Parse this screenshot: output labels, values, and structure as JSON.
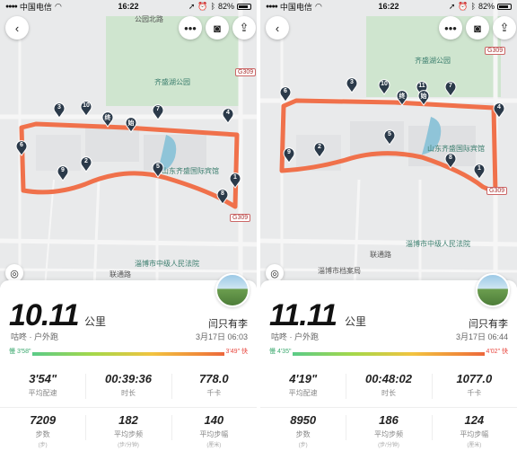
{
  "panels": [
    {
      "status": {
        "carrier": "中国电信",
        "time": "16:22",
        "battery": "82%"
      },
      "map": {
        "park": "齐盛湖公园",
        "hotel": "山东齐盛国际宾馆",
        "court": "淄博市中级人民法院",
        "road1": "联通路",
        "road2": "公园北路",
        "badge1": "G309",
        "badge2": "G309",
        "markers": [
          "1",
          "2",
          "3",
          "4",
          "5",
          "6",
          "7",
          "8",
          "9",
          "10"
        ],
        "start": "始",
        "end": "终"
      },
      "distance": "10.11",
      "unit": "公里",
      "source": "咕咚 · 户外跑",
      "user": "闫只有李",
      "date": "3月17日 06:03",
      "pace_slow": "慢 3'58\"",
      "pace_fast": "3'49\" 快",
      "stats": [
        {
          "value": "3'54\"",
          "label": "平均配速",
          "sub": ""
        },
        {
          "value": "00:39:36",
          "label": "时长",
          "sub": ""
        },
        {
          "value": "778.0",
          "label": "千卡",
          "sub": ""
        },
        {
          "value": "7209",
          "label": "步数",
          "sub": "(步)"
        },
        {
          "value": "182",
          "label": "平均步频",
          "sub": "(步/分钟)"
        },
        {
          "value": "140",
          "label": "平均步幅",
          "sub": "(厘米)"
        }
      ]
    },
    {
      "status": {
        "carrier": "中国电信",
        "time": "16:22",
        "battery": "82%"
      },
      "map": {
        "park": "齐盛湖公园",
        "hotel": "山东齐盛国际宾馆",
        "court": "淄博市中级人民法院",
        "road1": "联通路",
        "road2": "淄博市档案局",
        "badge1": "G309",
        "badge2": "G309",
        "markers": [
          "1",
          "2",
          "3",
          "4",
          "5",
          "6",
          "7",
          "8",
          "9",
          "10",
          "11"
        ],
        "start": "始",
        "end": "终"
      },
      "distance": "11.11",
      "unit": "公里",
      "source": "咕咚 · 户外跑",
      "user": "闫只有李",
      "date": "3月17日 06:44",
      "pace_slow": "慢 4'35\"",
      "pace_fast": "4'02\" 快",
      "stats": [
        {
          "value": "4'19\"",
          "label": "平均配速",
          "sub": ""
        },
        {
          "value": "00:48:02",
          "label": "时长",
          "sub": ""
        },
        {
          "value": "1077.0",
          "label": "千卡",
          "sub": ""
        },
        {
          "value": "8950",
          "label": "步数",
          "sub": "(步)"
        },
        {
          "value": "186",
          "label": "平均步频",
          "sub": "(步/分钟)"
        },
        {
          "value": "124",
          "label": "平均步幅",
          "sub": "(厘米)"
        }
      ]
    }
  ],
  "colors": {
    "route": "#f0714b",
    "marker": "#2b3a4a",
    "park": "#c9e2c9",
    "water": "#8fc4d8"
  },
  "icons": [
    "back-arrow-icon",
    "more-icon",
    "camera-icon",
    "share-icon",
    "locate-icon",
    "wifi-icon",
    "location-arrow-icon",
    "alarm-icon",
    "bluetooth-icon"
  ]
}
